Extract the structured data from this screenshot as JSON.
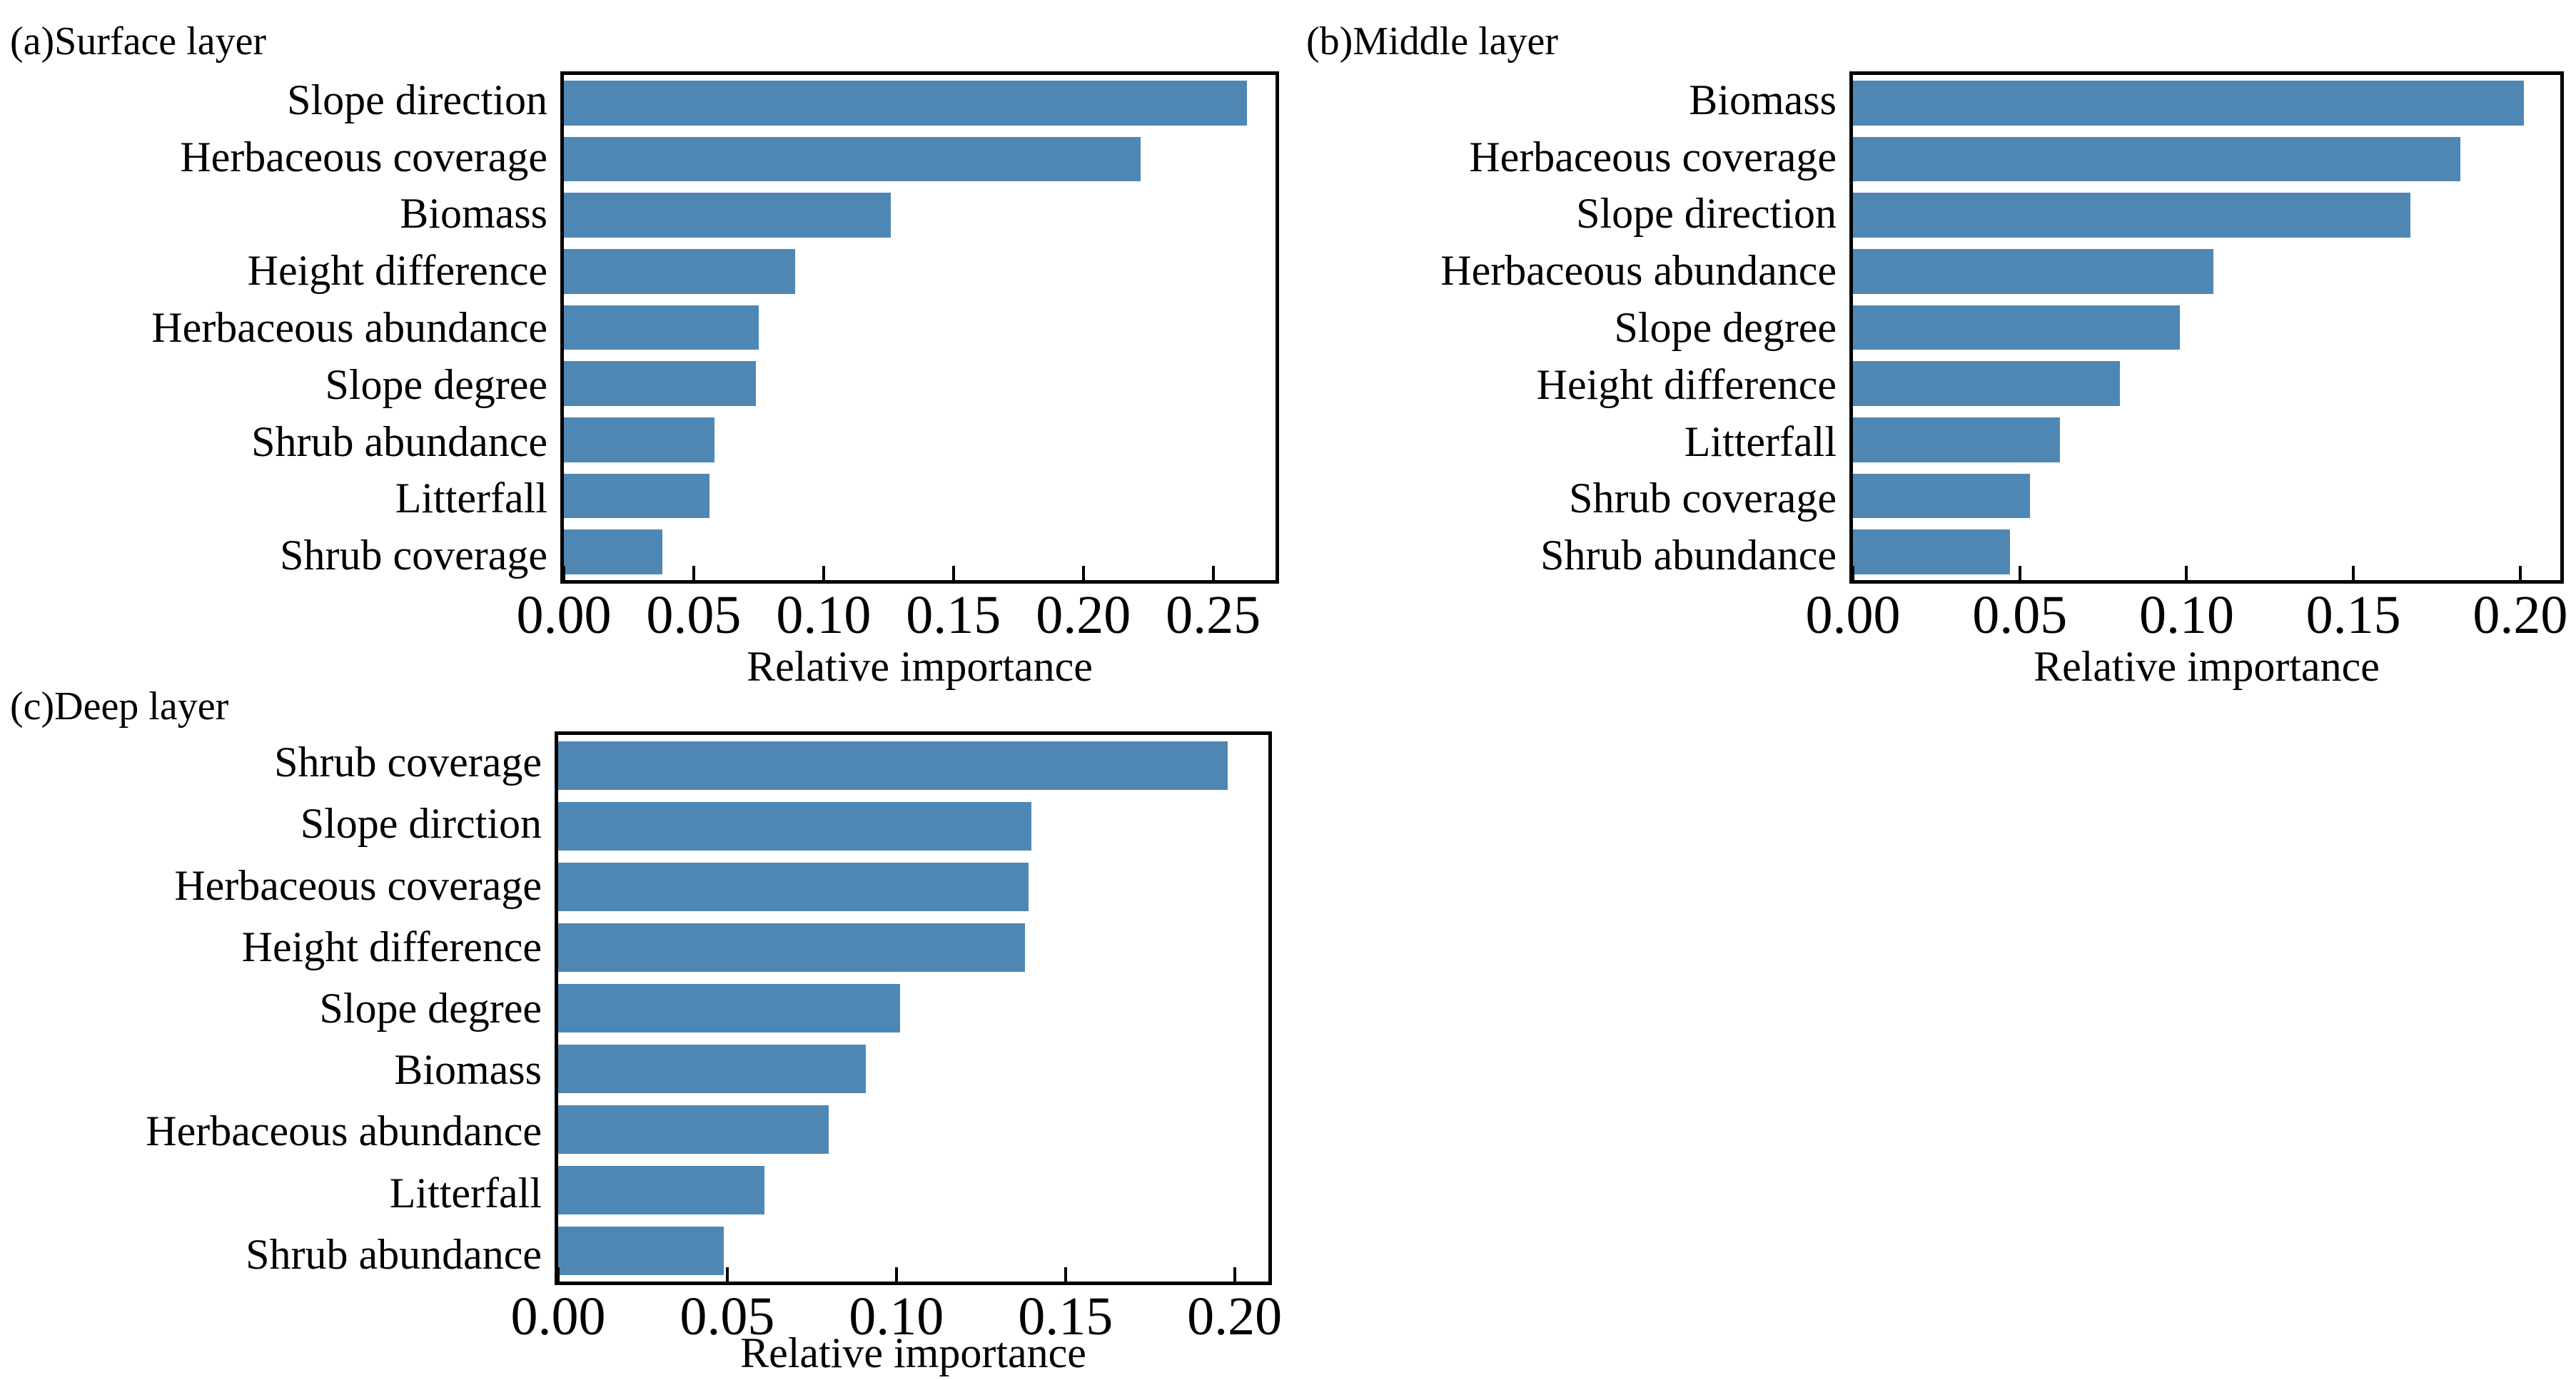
{
  "colors": {
    "bar": "#4f87b4",
    "frame": "#000000",
    "text": "#000000",
    "background": "#ffffff"
  },
  "chart_data": [
    {
      "type": "bar",
      "orientation": "horizontal",
      "panel_label": "(a)",
      "title": "(a)Surface layer",
      "xlabel": "Relative importance",
      "xlim": [
        0,
        0.274
      ],
      "grid": false,
      "legend": null,
      "xtick_values": [
        0.0,
        0.05,
        0.1,
        0.15,
        0.2,
        0.25
      ],
      "xtick_labels": [
        "0.00",
        "0.05",
        "0.10",
        "0.15",
        "0.20",
        "0.25"
      ],
      "categories": [
        "Slope direction",
        "Herbaceous coverage",
        "Biomass",
        "Height difference",
        "Herbaceous abundance",
        "Slope degree",
        "Shrub abundance",
        "Litterfall",
        "Shrub coverage"
      ],
      "values": [
        0.263,
        0.222,
        0.126,
        0.089,
        0.075,
        0.074,
        0.058,
        0.056,
        0.038
      ]
    },
    {
      "type": "bar",
      "orientation": "horizontal",
      "panel_label": "(b)",
      "title": "(b)Middle layer",
      "xlabel": "Relative importance",
      "xlim": [
        0,
        0.212
      ],
      "grid": false,
      "legend": null,
      "xtick_values": [
        0.0,
        0.05,
        0.1,
        0.15,
        0.2
      ],
      "xtick_labels": [
        "0.00",
        "0.05",
        "0.10",
        "0.15",
        "0.20"
      ],
      "categories": [
        "Biomass",
        "Herbaceous coverage",
        "Slope direction",
        "Herbaceous abundance",
        "Slope degree",
        "Height difference",
        "Litterfall",
        "Shrub coverage",
        "Shrub abundance"
      ],
      "values": [
        0.201,
        0.182,
        0.167,
        0.108,
        0.098,
        0.08,
        0.062,
        0.053,
        0.047
      ]
    },
    {
      "type": "bar",
      "orientation": "horizontal",
      "panel_label": "(c)",
      "title": "(c)Deep layer",
      "xlabel": "Relative importance",
      "xlim": [
        0,
        0.21
      ],
      "grid": false,
      "legend": null,
      "xtick_values": [
        0.0,
        0.05,
        0.1,
        0.15,
        0.2
      ],
      "xtick_labels": [
        "0.00",
        "0.05",
        "0.10",
        "0.15",
        "0.20"
      ],
      "categories": [
        "Shrub coverage",
        "Slope dirction",
        "Herbaceous coverage",
        "Height difference",
        "Slope degree",
        "Biomass",
        "Herbaceous abundance",
        "Litterfall",
        "Shrub abundance"
      ],
      "values": [
        0.198,
        0.14,
        0.139,
        0.138,
        0.101,
        0.091,
        0.08,
        0.061,
        0.049
      ]
    }
  ]
}
